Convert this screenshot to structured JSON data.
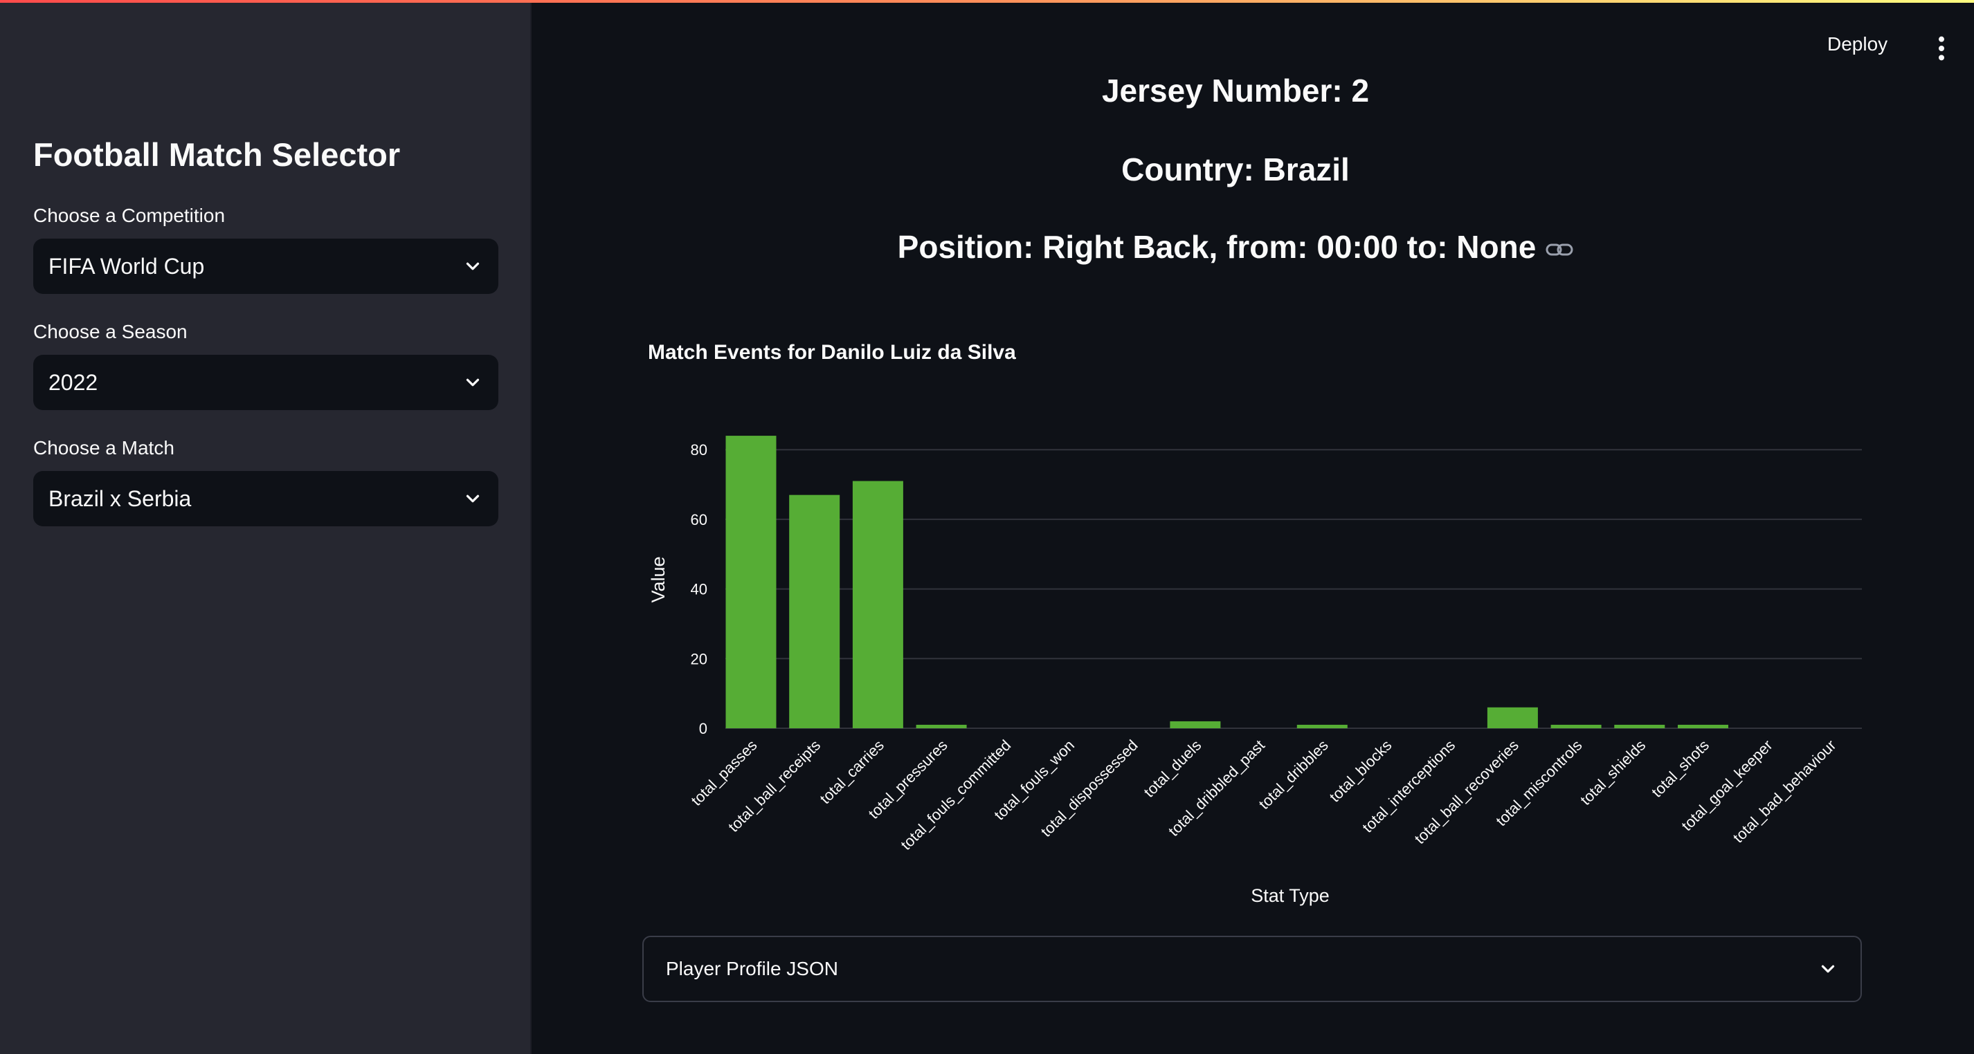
{
  "sidebar": {
    "title": "Football Match Selector",
    "competition": {
      "label": "Choose a Competition",
      "value": "FIFA World Cup"
    },
    "season": {
      "label": "Choose a Season",
      "value": "2022"
    },
    "match": {
      "label": "Choose a Match",
      "value": "Brazil x Serbia"
    }
  },
  "header": {
    "deploy_label": "Deploy",
    "menu_icon": "kebab-menu-icon"
  },
  "player": {
    "jersey": "Jersey Number: 2",
    "country": "Country: Brazil",
    "position": "Position: Right Back, from: 00:00 to: None",
    "link_icon": "link-icon"
  },
  "chart_data": {
    "type": "bar",
    "title": "Match Events for Danilo Luiz da Silva",
    "xlabel": "Stat Type",
    "ylabel": "Value",
    "ylim": [
      0,
      86
    ],
    "yticks": [
      "0",
      "20",
      "40",
      "60",
      "80"
    ],
    "grid": true,
    "bar_color": "#56ad35",
    "categories": [
      "total_passes",
      "total_ball_receipts",
      "total_carries",
      "total_pressures",
      "total_fouls_committed",
      "total_fouls_won",
      "total_dispossessed",
      "total_duels",
      "total_dribbled_past",
      "total_dribbles",
      "total_blocks",
      "total_interceptions",
      "total_ball_recoveries",
      "total_miscontrols",
      "total_shields",
      "total_shots",
      "total_goal_keeper",
      "total_bad_behaviour"
    ],
    "values": [
      84,
      67,
      71,
      1,
      0,
      0,
      0,
      2,
      0,
      1,
      0,
      0,
      6,
      1,
      1,
      1,
      0,
      0
    ]
  },
  "expander": {
    "label": "Player Profile JSON"
  },
  "colors": {
    "background": "#0e1117",
    "sidebar": "#262730",
    "bar": "#56ad35",
    "text": "#fafafa"
  }
}
